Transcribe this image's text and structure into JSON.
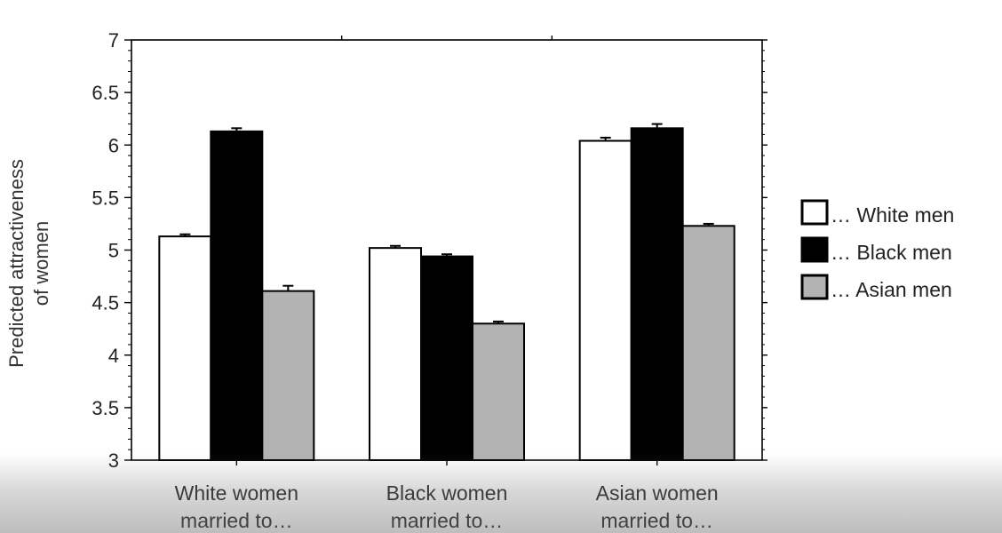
{
  "chart_data": {
    "type": "bar",
    "ylabel": "Predicted attractiveness of women",
    "ylabel_lines": [
      "Predicted attractiveness",
      "of women"
    ],
    "ylim": [
      3,
      7
    ],
    "yticks": [
      "3",
      "3.5",
      "4",
      "4.5",
      "5",
      "5.5",
      "6",
      "6.5",
      "7"
    ],
    "grid": false,
    "legend_position": "right",
    "categories": [
      "White women married to…",
      "Black women married to…",
      "Asian women married to…"
    ],
    "category_lines": [
      [
        "White women",
        "married to…"
      ],
      [
        "Black women",
        "married to…"
      ],
      [
        "Asian women",
        "married to…"
      ]
    ],
    "series": [
      {
        "name": "… White men",
        "color": "#ffffff",
        "values": [
          5.13,
          5.02,
          6.04
        ],
        "errors": [
          0.02,
          0.02,
          0.03
        ]
      },
      {
        "name": "… Black men",
        "color": "#000000",
        "values": [
          6.13,
          4.94,
          6.16
        ],
        "errors": [
          0.03,
          0.02,
          0.04
        ]
      },
      {
        "name": "… Asian men",
        "color": "#b3b3b3",
        "values": [
          4.61,
          4.3,
          5.23
        ],
        "errors": [
          0.05,
          0.02,
          0.02
        ]
      }
    ]
  }
}
